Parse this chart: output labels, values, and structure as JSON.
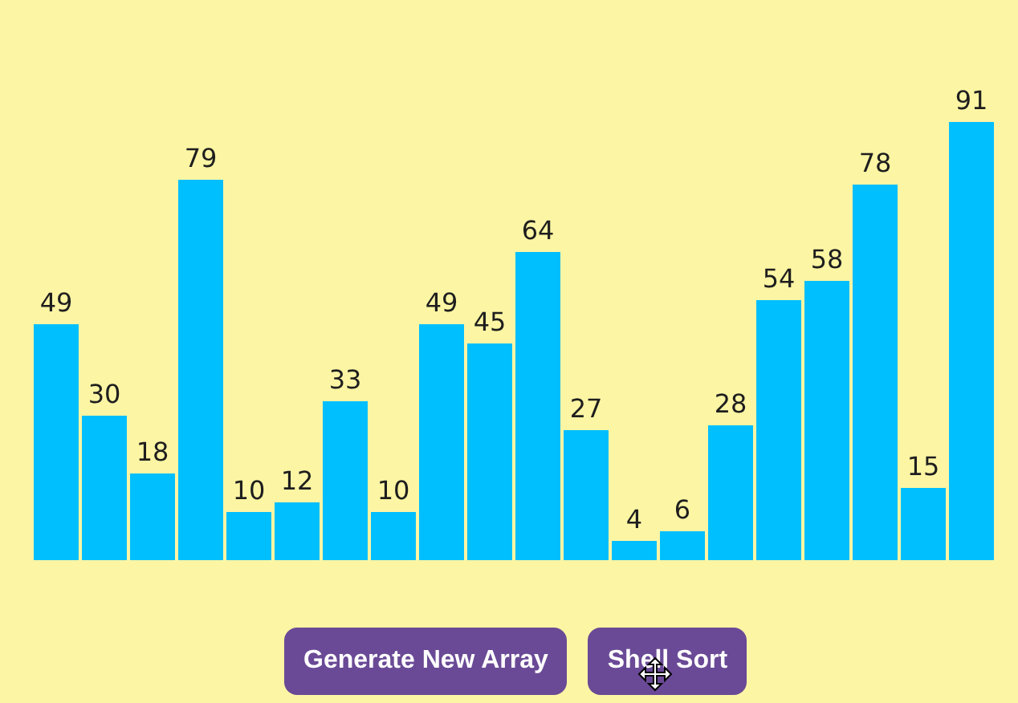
{
  "chart_data": {
    "type": "bar",
    "categories": [
      null,
      null,
      null,
      null,
      null,
      null,
      null,
      null,
      null,
      null,
      null,
      null,
      null,
      null,
      null,
      null,
      null,
      null,
      null,
      null
    ],
    "values": [
      49,
      30,
      18,
      79,
      10,
      12,
      33,
      10,
      49,
      45,
      64,
      27,
      4,
      6,
      28,
      54,
      58,
      78,
      15,
      91
    ],
    "color": "#00bfff",
    "data_labels": true,
    "annotations": [
      "Generate New Array",
      "Shell Sort"
    ]
  }
}
